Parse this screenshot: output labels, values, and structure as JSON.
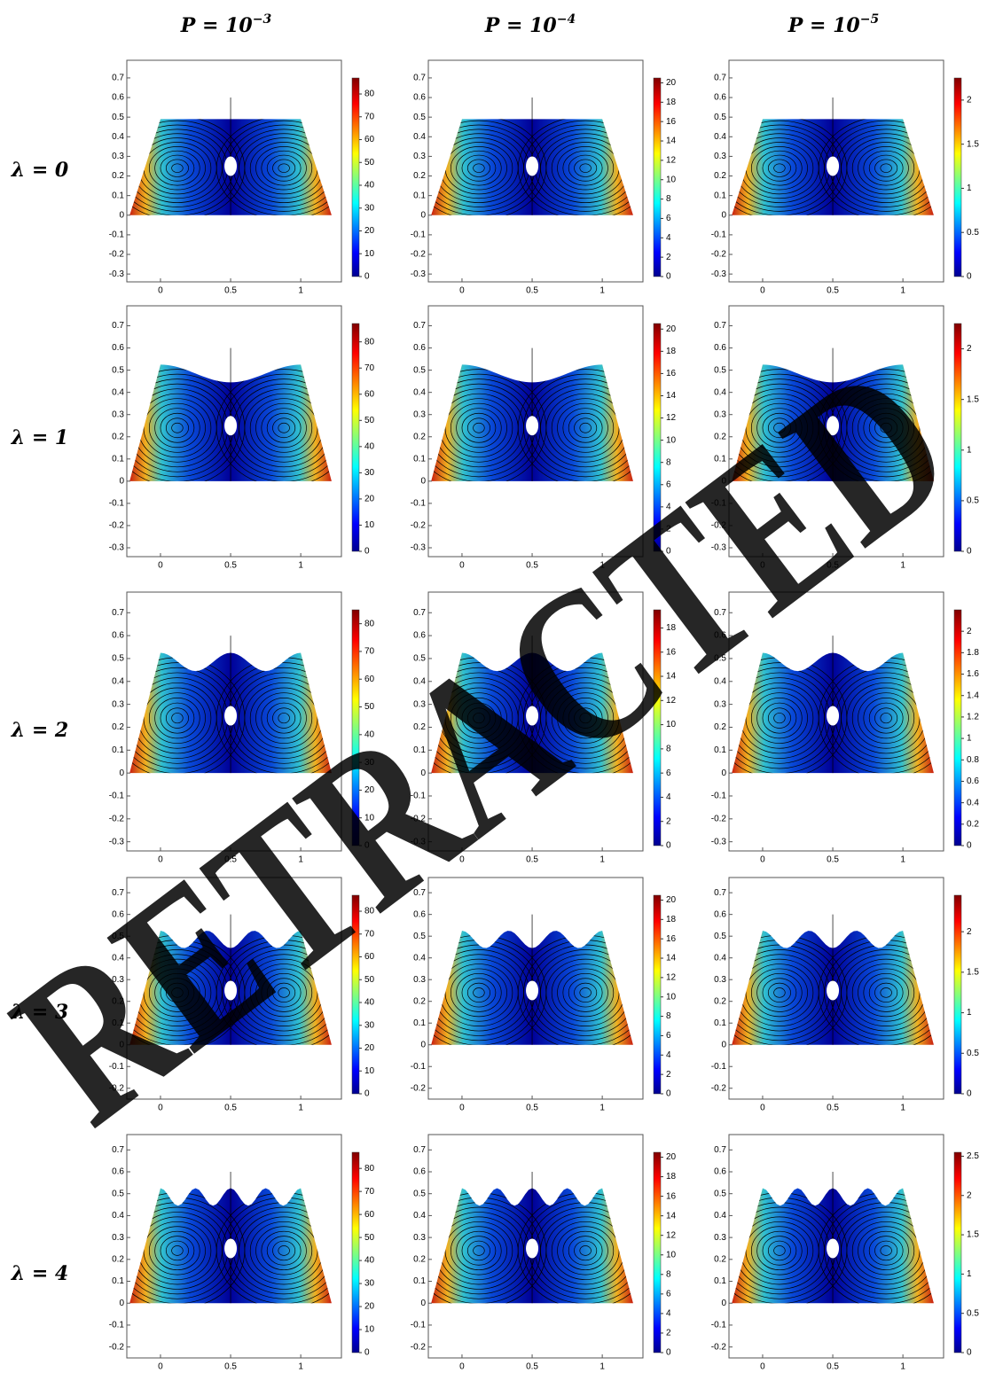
{
  "column_titles": [
    {
      "base": "P = 10",
      "exponent": "−3"
    },
    {
      "base": "P = 10",
      "exponent": "−4"
    },
    {
      "base": "P = 10",
      "exponent": "−5"
    }
  ],
  "row_labels": [
    "λ = 0",
    "λ = 1",
    "λ = 2",
    "λ = 3",
    "λ = 4"
  ],
  "watermark": "RETRACTED",
  "chart_data": [
    {
      "type": "contour",
      "xlim": [
        -0.24,
        1.29
      ],
      "ylim": [
        -0.34,
        0.79
      ],
      "xticks": [
        0,
        0.5,
        1
      ],
      "yticks": [
        -0.3,
        -0.2,
        -0.1,
        0,
        0.1,
        0.2,
        0.3,
        0.4,
        0.5,
        0.6,
        0.7
      ],
      "clim": [
        0,
        87
      ],
      "cticks": [
        0,
        10,
        20,
        30,
        40,
        50,
        60,
        70,
        80
      ]
    },
    {
      "type": "contour",
      "xlim": [
        -0.24,
        1.29
      ],
      "ylim": [
        -0.34,
        0.79
      ],
      "xticks": [
        0,
        0.5,
        1
      ],
      "yticks": [
        -0.3,
        -0.2,
        -0.1,
        0,
        0.1,
        0.2,
        0.3,
        0.4,
        0.5,
        0.6,
        0.7
      ],
      "clim": [
        0,
        20.5
      ],
      "cticks": [
        0,
        2,
        4,
        6,
        8,
        10,
        12,
        14,
        16,
        18,
        20
      ]
    },
    {
      "type": "contour",
      "xlim": [
        -0.24,
        1.29
      ],
      "ylim": [
        -0.34,
        0.79
      ],
      "xticks": [
        0,
        0.5,
        1
      ],
      "yticks": [
        -0.3,
        -0.2,
        -0.1,
        0,
        0.1,
        0.2,
        0.3,
        0.4,
        0.5,
        0.6,
        0.7
      ],
      "clim": [
        0,
        2.25
      ],
      "cticks": [
        0,
        0.5,
        1,
        1.5,
        2
      ]
    },
    {
      "type": "contour",
      "xlim": [
        -0.24,
        1.29
      ],
      "ylim": [
        -0.34,
        0.79
      ],
      "xticks": [
        0,
        0.5,
        1
      ],
      "yticks": [
        -0.3,
        -0.2,
        -0.1,
        0,
        0.1,
        0.2,
        0.3,
        0.4,
        0.5,
        0.6,
        0.7
      ],
      "clim": [
        0,
        87
      ],
      "cticks": [
        0,
        10,
        20,
        30,
        40,
        50,
        60,
        70,
        80
      ]
    },
    {
      "type": "contour",
      "xlim": [
        -0.24,
        1.29
      ],
      "ylim": [
        -0.34,
        0.79
      ],
      "xticks": [
        0,
        0.5,
        1
      ],
      "yticks": [
        -0.3,
        -0.2,
        -0.1,
        0,
        0.1,
        0.2,
        0.3,
        0.4,
        0.5,
        0.6,
        0.7
      ],
      "clim": [
        0,
        20.5
      ],
      "cticks": [
        0,
        2,
        4,
        6,
        8,
        10,
        12,
        14,
        16,
        18,
        20
      ]
    },
    {
      "type": "contour",
      "xlim": [
        -0.24,
        1.29
      ],
      "ylim": [
        -0.34,
        0.79
      ],
      "xticks": [
        0,
        0.5,
        1
      ],
      "yticks": [
        -0.3,
        -0.2,
        -0.1,
        0,
        0.1,
        0.2,
        0.3,
        0.4,
        0.5,
        0.6,
        0.7
      ],
      "clim": [
        0,
        2.25
      ],
      "cticks": [
        0,
        0.5,
        1,
        1.5,
        2
      ]
    },
    {
      "type": "contour",
      "xlim": [
        -0.24,
        1.29
      ],
      "ylim": [
        -0.34,
        0.79
      ],
      "xticks": [
        0,
        0.5,
        1
      ],
      "yticks": [
        -0.3,
        -0.2,
        -0.1,
        0,
        0.1,
        0.2,
        0.3,
        0.4,
        0.5,
        0.6,
        0.7
      ],
      "clim": [
        0,
        85
      ],
      "cticks": [
        0,
        10,
        20,
        30,
        40,
        50,
        60,
        70,
        80
      ]
    },
    {
      "type": "contour",
      "xlim": [
        -0.24,
        1.29
      ],
      "ylim": [
        -0.34,
        0.79
      ],
      "xticks": [
        0,
        0.5,
        1
      ],
      "yticks": [
        -0.3,
        -0.2,
        -0.1,
        0,
        0.1,
        0.2,
        0.3,
        0.4,
        0.5,
        0.6,
        0.7
      ],
      "clim": [
        0,
        19.5
      ],
      "cticks": [
        0,
        2,
        4,
        6,
        8,
        10,
        12,
        14,
        16,
        18
      ]
    },
    {
      "type": "contour",
      "xlim": [
        -0.24,
        1.29
      ],
      "ylim": [
        -0.34,
        0.79
      ],
      "xticks": [
        0,
        0.5,
        1
      ],
      "yticks": [
        -0.3,
        -0.2,
        -0.1,
        0,
        0.1,
        0.2,
        0.3,
        0.4,
        0.5,
        0.6,
        0.7
      ],
      "clim": [
        0,
        2.2
      ],
      "cticks": [
        0,
        0.2,
        0.4,
        0.6,
        0.8,
        1,
        1.2,
        1.4,
        1.6,
        1.8,
        2
      ]
    },
    {
      "type": "contour",
      "xlim": [
        -0.24,
        1.29
      ],
      "ylim": [
        -0.25,
        0.77
      ],
      "xticks": [
        0,
        0.5,
        1
      ],
      "yticks": [
        -0.2,
        -0.1,
        0,
        0.1,
        0.2,
        0.3,
        0.4,
        0.5,
        0.6,
        0.7
      ],
      "clim": [
        0,
        87
      ],
      "cticks": [
        0,
        10,
        20,
        30,
        40,
        50,
        60,
        70,
        80
      ]
    },
    {
      "type": "contour",
      "xlim": [
        -0.24,
        1.29
      ],
      "ylim": [
        -0.25,
        0.77
      ],
      "xticks": [
        0,
        0.5,
        1
      ],
      "yticks": [
        -0.2,
        -0.1,
        0,
        0.1,
        0.2,
        0.3,
        0.4,
        0.5,
        0.6,
        0.7
      ],
      "clim": [
        0,
        20.5
      ],
      "cticks": [
        0,
        2,
        4,
        6,
        8,
        10,
        12,
        14,
        16,
        18,
        20
      ]
    },
    {
      "type": "contour",
      "xlim": [
        -0.24,
        1.29
      ],
      "ylim": [
        -0.25,
        0.77
      ],
      "xticks": [
        0,
        0.5,
        1
      ],
      "yticks": [
        -0.2,
        -0.1,
        0,
        0.1,
        0.2,
        0.3,
        0.4,
        0.5,
        0.6,
        0.7
      ],
      "clim": [
        0,
        2.45
      ],
      "cticks": [
        0,
        0.5,
        1,
        1.5,
        2
      ]
    },
    {
      "type": "contour",
      "xlim": [
        -0.24,
        1.29
      ],
      "ylim": [
        -0.25,
        0.77
      ],
      "xticks": [
        0,
        0.5,
        1
      ],
      "yticks": [
        -0.2,
        -0.1,
        0,
        0.1,
        0.2,
        0.3,
        0.4,
        0.5,
        0.6,
        0.7
      ],
      "clim": [
        0,
        87
      ],
      "cticks": [
        0,
        10,
        20,
        30,
        40,
        50,
        60,
        70,
        80
      ]
    },
    {
      "type": "contour",
      "xlim": [
        -0.24,
        1.29
      ],
      "ylim": [
        -0.25,
        0.77
      ],
      "xticks": [
        0,
        0.5,
        1
      ],
      "yticks": [
        -0.2,
        -0.1,
        0,
        0.1,
        0.2,
        0.3,
        0.4,
        0.5,
        0.6,
        0.7
      ],
      "clim": [
        0,
        20.5
      ],
      "cticks": [
        0,
        2,
        4,
        6,
        8,
        10,
        12,
        14,
        16,
        18,
        20
      ]
    },
    {
      "type": "contour",
      "xlim": [
        -0.24,
        1.29
      ],
      "ylim": [
        -0.25,
        0.77
      ],
      "xticks": [
        0,
        0.5,
        1
      ],
      "yticks": [
        -0.2,
        -0.1,
        0,
        0.1,
        0.2,
        0.3,
        0.4,
        0.5,
        0.6,
        0.7
      ],
      "clim": [
        0,
        2.55
      ],
      "cticks": [
        0,
        0.5,
        1,
        1.5,
        2,
        2.5
      ]
    }
  ]
}
